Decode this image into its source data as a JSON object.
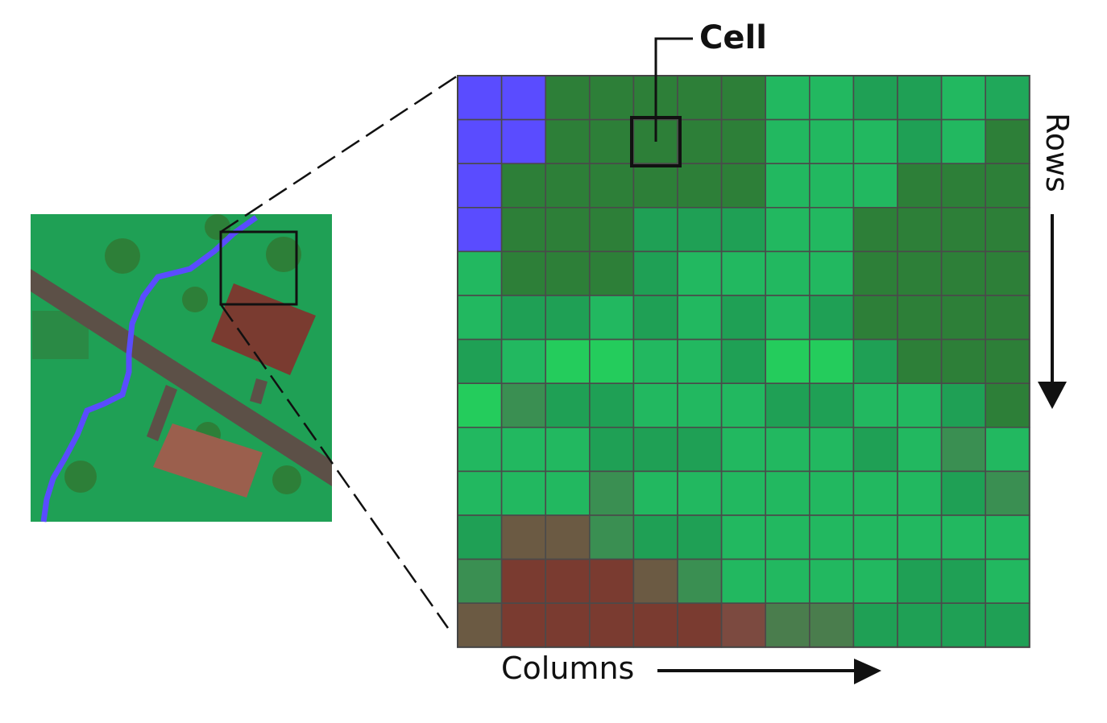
{
  "labels": {
    "cell": "Cell",
    "columns": "Columns",
    "rows": "Rows"
  },
  "palette": {
    "W": "#5a4cff",
    "D": "#2d7f38",
    "d": "#2a8a45",
    "M": "#1fa055",
    "m": "#20a85a",
    "L": "#22b860",
    "l": "#24cc5c",
    "T": "#3a8f52",
    "O": "#6b5a43",
    "R": "#7a3b30",
    "r": "#7c4a40",
    "G": "#4a7d4d"
  },
  "grid": [
    "WWDDDDDLLMMLm",
    "WWDDXDDLLLMLD",
    "WDDDDDDLLLDDD",
    "WDDDMMMLLDDDD",
    "LDDDMLLLLDDDD",
    "LMMLMLMLMDDDD",
    "MLllLLMllMDDD",
    "lTMMLLLMMLLMD",
    "LLLMMMLLLMLTL",
    "LLLTLLLLLLLMT",
    "MOOTMMLLLLLLL",
    "TRRROTLLLLMML",
    "ORRRRRrGGMMMM"
  ],
  "thumbnail": {
    "background": "#1fa055",
    "road": "#5c5047",
    "river": "#5a4cff",
    "building_large": "#7a3b30",
    "building_small": "#9b5f4d",
    "trees": "#2d7f38"
  }
}
